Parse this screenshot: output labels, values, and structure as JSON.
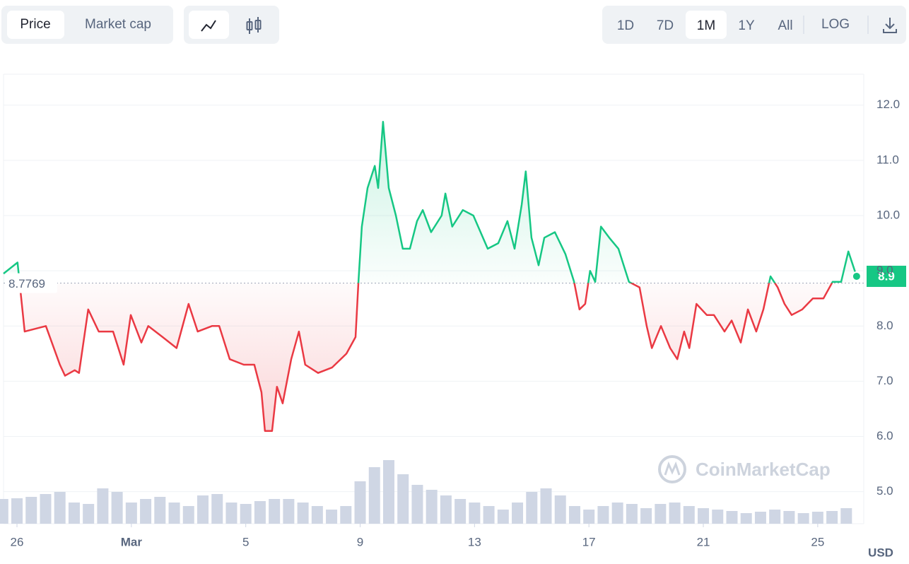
{
  "toolbar": {
    "metric_tabs": [
      "Price",
      "Market cap"
    ],
    "range_tabs": [
      "1D",
      "7D",
      "1M",
      "1Y",
      "All"
    ],
    "log": "LOG"
  },
  "currency": "USD",
  "watermark": "CoinMarketCap",
  "chart_data": {
    "type": "line",
    "up_color": "#16c784",
    "down_color": "#ea3943",
    "baseline": 8.7769,
    "last_price": 8.9,
    "x": [
      -4.47,
      -3.98,
      -3.73,
      -2.99,
      -2.5,
      -2.32,
      -1.98,
      -1.83,
      -1.51,
      -1.14,
      -0.64,
      -0.27,
      -0.02,
      0.35,
      0.59,
      1.09,
      1.58,
      2.0,
      2.32,
      2.82,
      3.07,
      3.44,
      3.93,
      4.3,
      4.55,
      4.67,
      4.92,
      5.09,
      5.29,
      5.59,
      5.86,
      6.08,
      6.53,
      7.02,
      7.52,
      7.84,
      7.94,
      8.06,
      8.26,
      8.51,
      8.63,
      8.8,
      9.0,
      9.25,
      9.49,
      9.74,
      9.99,
      10.19,
      10.48,
      10.85,
      10.98,
      11.22,
      11.59,
      11.96,
      12.46,
      12.83,
      13.15,
      13.4,
      13.65,
      13.79,
      13.99,
      14.24,
      14.44,
      14.81,
      15.18,
      15.48,
      15.67,
      15.87,
      16.04,
      16.22,
      16.42,
      16.71,
      17.03,
      17.4,
      17.77,
      18.02,
      18.2,
      18.52,
      18.84,
      19.09,
      19.33,
      19.51,
      19.76,
      20.12,
      20.37,
      20.74,
      20.99,
      21.31,
      21.56,
      21.85,
      22.1,
      22.35,
      22.6,
      22.84,
      23.09,
      23.46,
      23.83,
      24.2,
      24.52,
      24.82,
      25.07,
      25.36
    ],
    "values": [
      8.95,
      9.15,
      7.9,
      8.0,
      7.3,
      7.1,
      7.2,
      7.15,
      8.3,
      7.9,
      7.9,
      7.3,
      8.2,
      7.7,
      8.0,
      7.8,
      7.6,
      8.4,
      7.9,
      8.0,
      8.0,
      7.4,
      7.3,
      7.3,
      6.8,
      6.1,
      6.1,
      6.9,
      6.6,
      7.4,
      7.9,
      7.3,
      7.15,
      7.25,
      7.5,
      7.8,
      8.8,
      9.8,
      10.5,
      10.9,
      10.5,
      11.7,
      10.5,
      10.0,
      9.4,
      9.4,
      9.9,
      10.1,
      9.7,
      10.0,
      10.4,
      9.8,
      10.1,
      10.0,
      9.4,
      9.5,
      9.9,
      9.4,
      10.2,
      10.8,
      9.6,
      9.1,
      9.6,
      9.7,
      9.3,
      8.8,
      8.3,
      8.4,
      9.0,
      8.8,
      9.8,
      9.6,
      9.4,
      8.8,
      8.7,
      8.0,
      7.6,
      8.0,
      7.6,
      7.4,
      7.9,
      7.6,
      8.4,
      8.2,
      8.2,
      7.9,
      8.1,
      7.7,
      8.3,
      7.9,
      8.3,
      8.9,
      8.7,
      8.4,
      8.2,
      8.3,
      8.5,
      8.5,
      8.8,
      8.8,
      9.35,
      8.9
    ],
    "volume": {
      "color": "#cfd6e4",
      "x": [
        -4.5,
        -4,
        -3.5,
        -3,
        -2.5,
        -2,
        -1.5,
        -1,
        -0.5,
        0,
        0.5,
        1,
        1.5,
        2,
        2.5,
        3,
        3.5,
        4,
        4.5,
        5,
        5.5,
        6,
        6.5,
        7,
        7.5,
        8,
        8.5,
        9,
        9.5,
        10,
        10.5,
        11,
        11.5,
        12,
        12.5,
        13,
        13.5,
        14,
        14.5,
        15,
        15.5,
        16,
        16.5,
        17,
        17.5,
        18,
        18.5,
        19,
        19.5,
        20,
        20.5,
        21,
        21.5,
        22,
        22.5,
        23,
        23.5,
        24,
        24.5,
        25
      ],
      "values": [
        35,
        36,
        38,
        42,
        45,
        30,
        28,
        50,
        45,
        30,
        35,
        38,
        30,
        25,
        40,
        42,
        30,
        28,
        32,
        35,
        35,
        30,
        25,
        20,
        25,
        60,
        80,
        90,
        70,
        55,
        48,
        40,
        35,
        30,
        25,
        20,
        30,
        45,
        50,
        40,
        25,
        20,
        25,
        30,
        28,
        22,
        28,
        30,
        25,
        22,
        20,
        18,
        15,
        17,
        20,
        18,
        15,
        17,
        18,
        22
      ]
    },
    "xlim": [
      -4.47,
      25.61
    ],
    "xticks": [
      {
        "value": -4,
        "label": "26"
      },
      {
        "value": 0,
        "label": "Mar"
      },
      {
        "value": 4,
        "label": "5"
      },
      {
        "value": 8,
        "label": "9"
      },
      {
        "value": 12,
        "label": "13"
      },
      {
        "value": 16,
        "label": "17"
      },
      {
        "value": 20,
        "label": "21"
      },
      {
        "value": 24,
        "label": "25"
      }
    ],
    "ylim": [
      4.42,
      12.56
    ],
    "yticks": [
      {
        "value": 5,
        "label": "5.0"
      },
      {
        "value": 6,
        "label": "6.0"
      },
      {
        "value": 7,
        "label": "7.0"
      },
      {
        "value": 8,
        "label": "8.0"
      },
      {
        "value": 9,
        "label": "9.0"
      },
      {
        "value": 10,
        "label": "10.0"
      },
      {
        "value": 11,
        "label": "11.0"
      },
      {
        "value": 12,
        "label": "12.0"
      }
    ],
    "grid": true
  }
}
